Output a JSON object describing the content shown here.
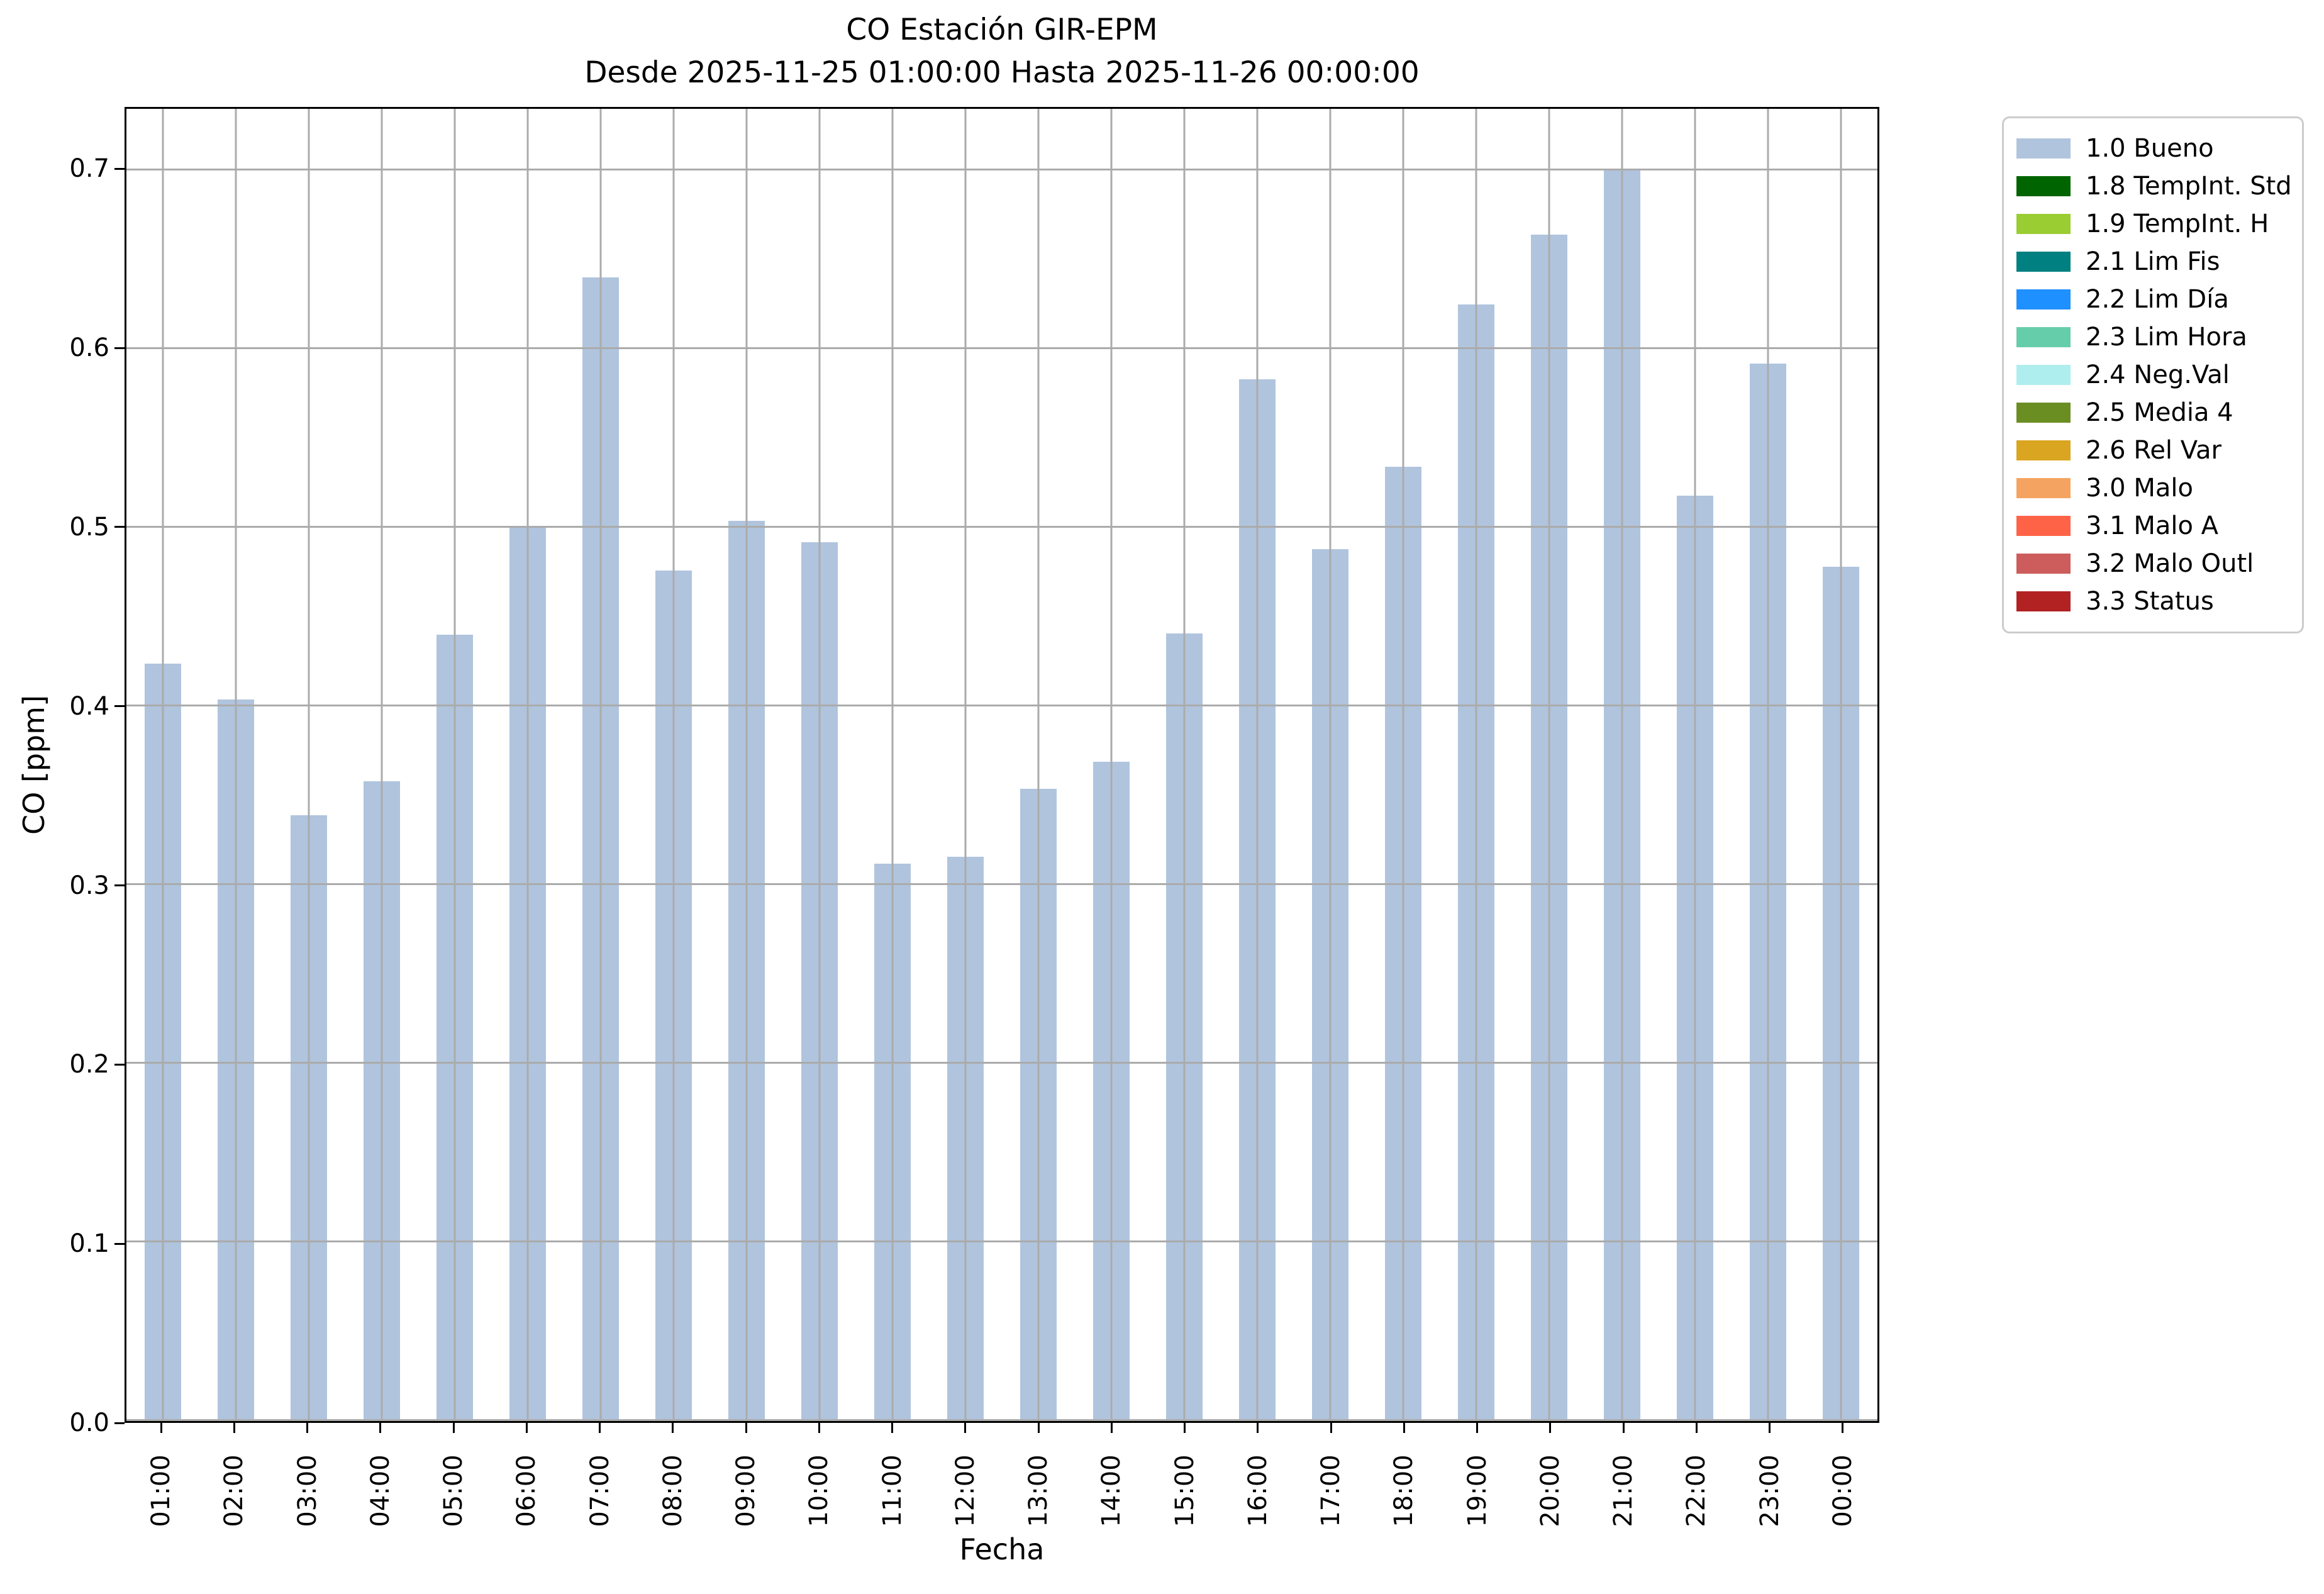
{
  "chart_data": {
    "type": "bar",
    "title": "CO Estación GIR-EPM",
    "subtitle": "Desde 2025-11-25 01:00:00 Hasta 2025-11-26 00:00:00",
    "xlabel": "Fecha",
    "ylabel": "CO [ppm]",
    "ylim": [
      0.0,
      0.7345
    ],
    "yticks": [
      0.0,
      0.1,
      0.2,
      0.3,
      0.4,
      0.5,
      0.6,
      0.7
    ],
    "grid": true,
    "legend_position": "outside-right",
    "categories": [
      "01:00",
      "02:00",
      "03:00",
      "04:00",
      "05:00",
      "06:00",
      "07:00",
      "08:00",
      "09:00",
      "10:00",
      "11:00",
      "12:00",
      "13:00",
      "14:00",
      "15:00",
      "16:00",
      "17:00",
      "18:00",
      "19:00",
      "20:00",
      "21:00",
      "22:00",
      "23:00",
      "00:00"
    ],
    "series": [
      {
        "name": "1.0 Bueno",
        "color": "#b0c4de",
        "values": [
          0.424,
          0.404,
          0.339,
          0.358,
          0.44,
          0.5,
          0.64,
          0.476,
          0.504,
          0.492,
          0.312,
          0.316,
          0.354,
          0.369,
          0.441,
          0.583,
          0.488,
          0.534,
          0.625,
          0.664,
          0.7,
          0.518,
          0.592,
          0.478
        ]
      }
    ],
    "legend": [
      {
        "label": "1.0 Bueno",
        "color": "#b0c4de"
      },
      {
        "label": "1.8 TempInt. Std",
        "color": "#006400"
      },
      {
        "label": "1.9 TempInt. H",
        "color": "#9acd32"
      },
      {
        "label": "2.1 Lim Fis",
        "color": "#008080"
      },
      {
        "label": "2.2 Lim Día",
        "color": "#1e90ff"
      },
      {
        "label": "2.3 Lim Hora",
        "color": "#66cdaa"
      },
      {
        "label": "2.4 Neg.Val",
        "color": "#afeeee"
      },
      {
        "label": "2.5 Media 4",
        "color": "#6b8e23"
      },
      {
        "label": "2.6 Rel Var",
        "color": "#daa520"
      },
      {
        "label": "3.0 Malo",
        "color": "#f4a460"
      },
      {
        "label": "3.1 Malo A",
        "color": "#ff6347"
      },
      {
        "label": "3.2 Malo Outl",
        "color": "#cd5c5c"
      },
      {
        "label": "3.3 Status",
        "color": "#b22222"
      }
    ],
    "style": {
      "grid_color": "#ababab",
      "bar_color": "#b0c4de",
      "spine_color": "#000000",
      "legend_border_color": "#cccccc"
    }
  }
}
